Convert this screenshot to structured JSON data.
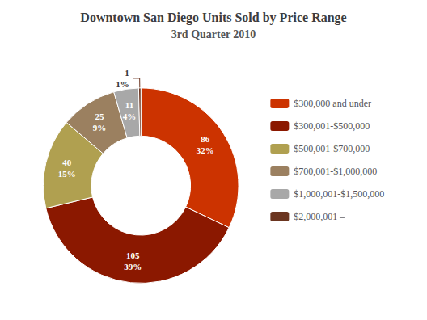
{
  "chart_data": {
    "type": "pie",
    "title": "Downtown San Diego Units Sold by Price Range",
    "subtitle": "3rd Quarter 2010",
    "categories": [
      "$300,000 and under",
      "$300,001-$500,000",
      "$500,001-$700,000",
      "$700,001-$1,000,000",
      "$1,000,001-$1,500,000",
      "$2,000,001 –"
    ],
    "values": [
      86,
      105,
      40,
      25,
      11,
      1
    ],
    "value_labels": [
      "86\n32%",
      "105\n39%",
      "40\n15%",
      "25\n9%",
      "11\n4%",
      "1\n1%"
    ],
    "colors": [
      "#cc3300",
      "#8b1800",
      "#b0a050",
      "#9b8060",
      "#a8a8a8",
      "#6b3520"
    ],
    "data_labels": true,
    "legend": "right"
  }
}
